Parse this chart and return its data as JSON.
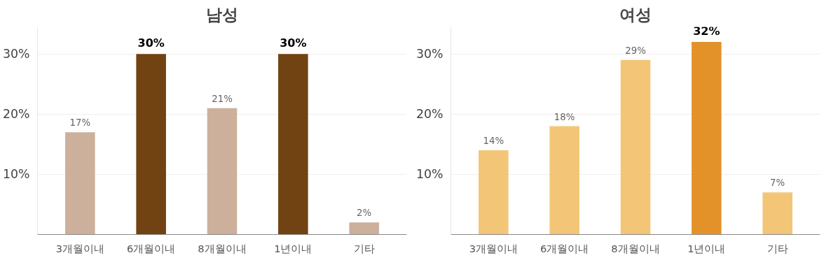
{
  "chart_data": [
    {
      "type": "bar",
      "title": "남성",
      "categories": [
        "3개월이내",
        "6개월이내",
        "8개월이내",
        "1년이내",
        "기타"
      ],
      "values": [
        17,
        30,
        21,
        30,
        2
      ],
      "colors": [
        "#ccb09b",
        "#714212",
        "#ccb09b",
        "#714212",
        "#ccb09b"
      ],
      "data_labels": true,
      "value_labels": [
        "17%",
        "30%",
        "21%",
        "30%",
        "2%"
      ],
      "ylim": [
        0,
        34.5
      ],
      "yticks": [
        {
          "value": 10,
          "label": "10%"
        },
        {
          "value": 20,
          "label": "20%"
        },
        {
          "value": 30,
          "label": "30%"
        }
      ],
      "grid": "y"
    },
    {
      "type": "bar",
      "title": "여성",
      "categories": [
        "3개월이내",
        "6개월이내",
        "8개월이내",
        "1년이내",
        "기타"
      ],
      "values": [
        14,
        18,
        29,
        32,
        7
      ],
      "colors": [
        "#f3c677",
        "#f3c677",
        "#f3c677",
        "#e3922a",
        "#f3c677"
      ],
      "data_labels": true,
      "value_labels": [
        "14%",
        "18%",
        "29%",
        "32%",
        "7%"
      ],
      "ylim": [
        0,
        34.5
      ],
      "yticks": [
        {
          "value": 10,
          "label": "10%"
        },
        {
          "value": 20,
          "label": "20%"
        },
        {
          "value": 30,
          "label": "30%"
        }
      ],
      "grid": "y"
    }
  ]
}
